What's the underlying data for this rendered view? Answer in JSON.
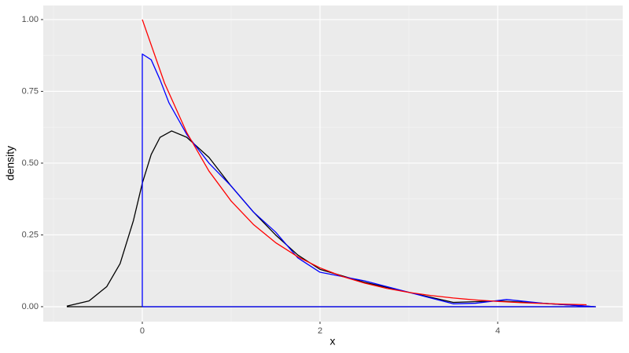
{
  "chart_data": {
    "type": "line",
    "x_label": "x",
    "y_label": "density",
    "xlim": [
      -1.115,
      5.407
    ],
    "ylim": [
      -0.052,
      1.049
    ],
    "xticks": [
      0,
      2,
      4
    ],
    "yticks": [
      {
        "value": 0,
        "label": "0.00"
      },
      {
        "value": 0.25,
        "label": "0.25"
      },
      {
        "value": 0.5,
        "label": "0.50"
      },
      {
        "value": 0.75,
        "label": "0.75"
      },
      {
        "value": 1,
        "label": "1.00"
      }
    ],
    "xminor": [
      -1,
      1,
      3,
      5
    ],
    "yminor": [
      0.125,
      0.375,
      0.625,
      0.875
    ],
    "grid": true,
    "series": [
      {
        "color": "#000000",
        "x": [
          -0.85,
          -0.6,
          -0.4,
          -0.25,
          -0.1,
          0,
          0.1,
          0.2,
          0.33,
          0.5,
          0.75,
          1.0,
          1.25,
          1.5,
          1.75,
          2.0,
          2.5,
          3.0,
          3.5,
          4.0,
          4.5,
          5.1,
          -0.85
        ],
        "values": [
          0.002,
          0.02,
          0.07,
          0.15,
          0.3,
          0.43,
          0.53,
          0.59,
          0.612,
          0.59,
          0.52,
          0.42,
          0.33,
          0.25,
          0.18,
          0.13,
          0.085,
          0.05,
          0.015,
          0.02,
          0.012,
          0,
          0
        ]
      },
      {
        "color": "#0000ff",
        "x": [
          0,
          0,
          0.1,
          0.2,
          0.3,
          0.5,
          0.75,
          1.0,
          1.25,
          1.5,
          1.75,
          2.0,
          2.5,
          3.0,
          3.25,
          3.5,
          3.75,
          4.1,
          4.5,
          5.1,
          0
        ],
        "values": [
          0,
          0.88,
          0.86,
          0.79,
          0.71,
          0.6,
          0.5,
          0.42,
          0.33,
          0.26,
          0.17,
          0.12,
          0.09,
          0.05,
          0.03,
          0.01,
          0.012,
          0.025,
          0.012,
          0,
          0
        ]
      },
      {
        "color": "#ff0000",
        "x": [
          0,
          0.25,
          0.5,
          0.75,
          1,
          1.25,
          1.5,
          1.75,
          2,
          2.25,
          2.5,
          2.75,
          3,
          3.25,
          3.5,
          3.75,
          4,
          4.25,
          4.5,
          4.75,
          5
        ],
        "values": [
          1,
          0.7788,
          0.6065,
          0.4724,
          0.3679,
          0.2865,
          0.2231,
          0.1738,
          0.1353,
          0.1054,
          0.0821,
          0.0639,
          0.0498,
          0.0388,
          0.0302,
          0.0235,
          0.0183,
          0.0143,
          0.0111,
          0.0087,
          0.0067
        ]
      }
    ]
  }
}
